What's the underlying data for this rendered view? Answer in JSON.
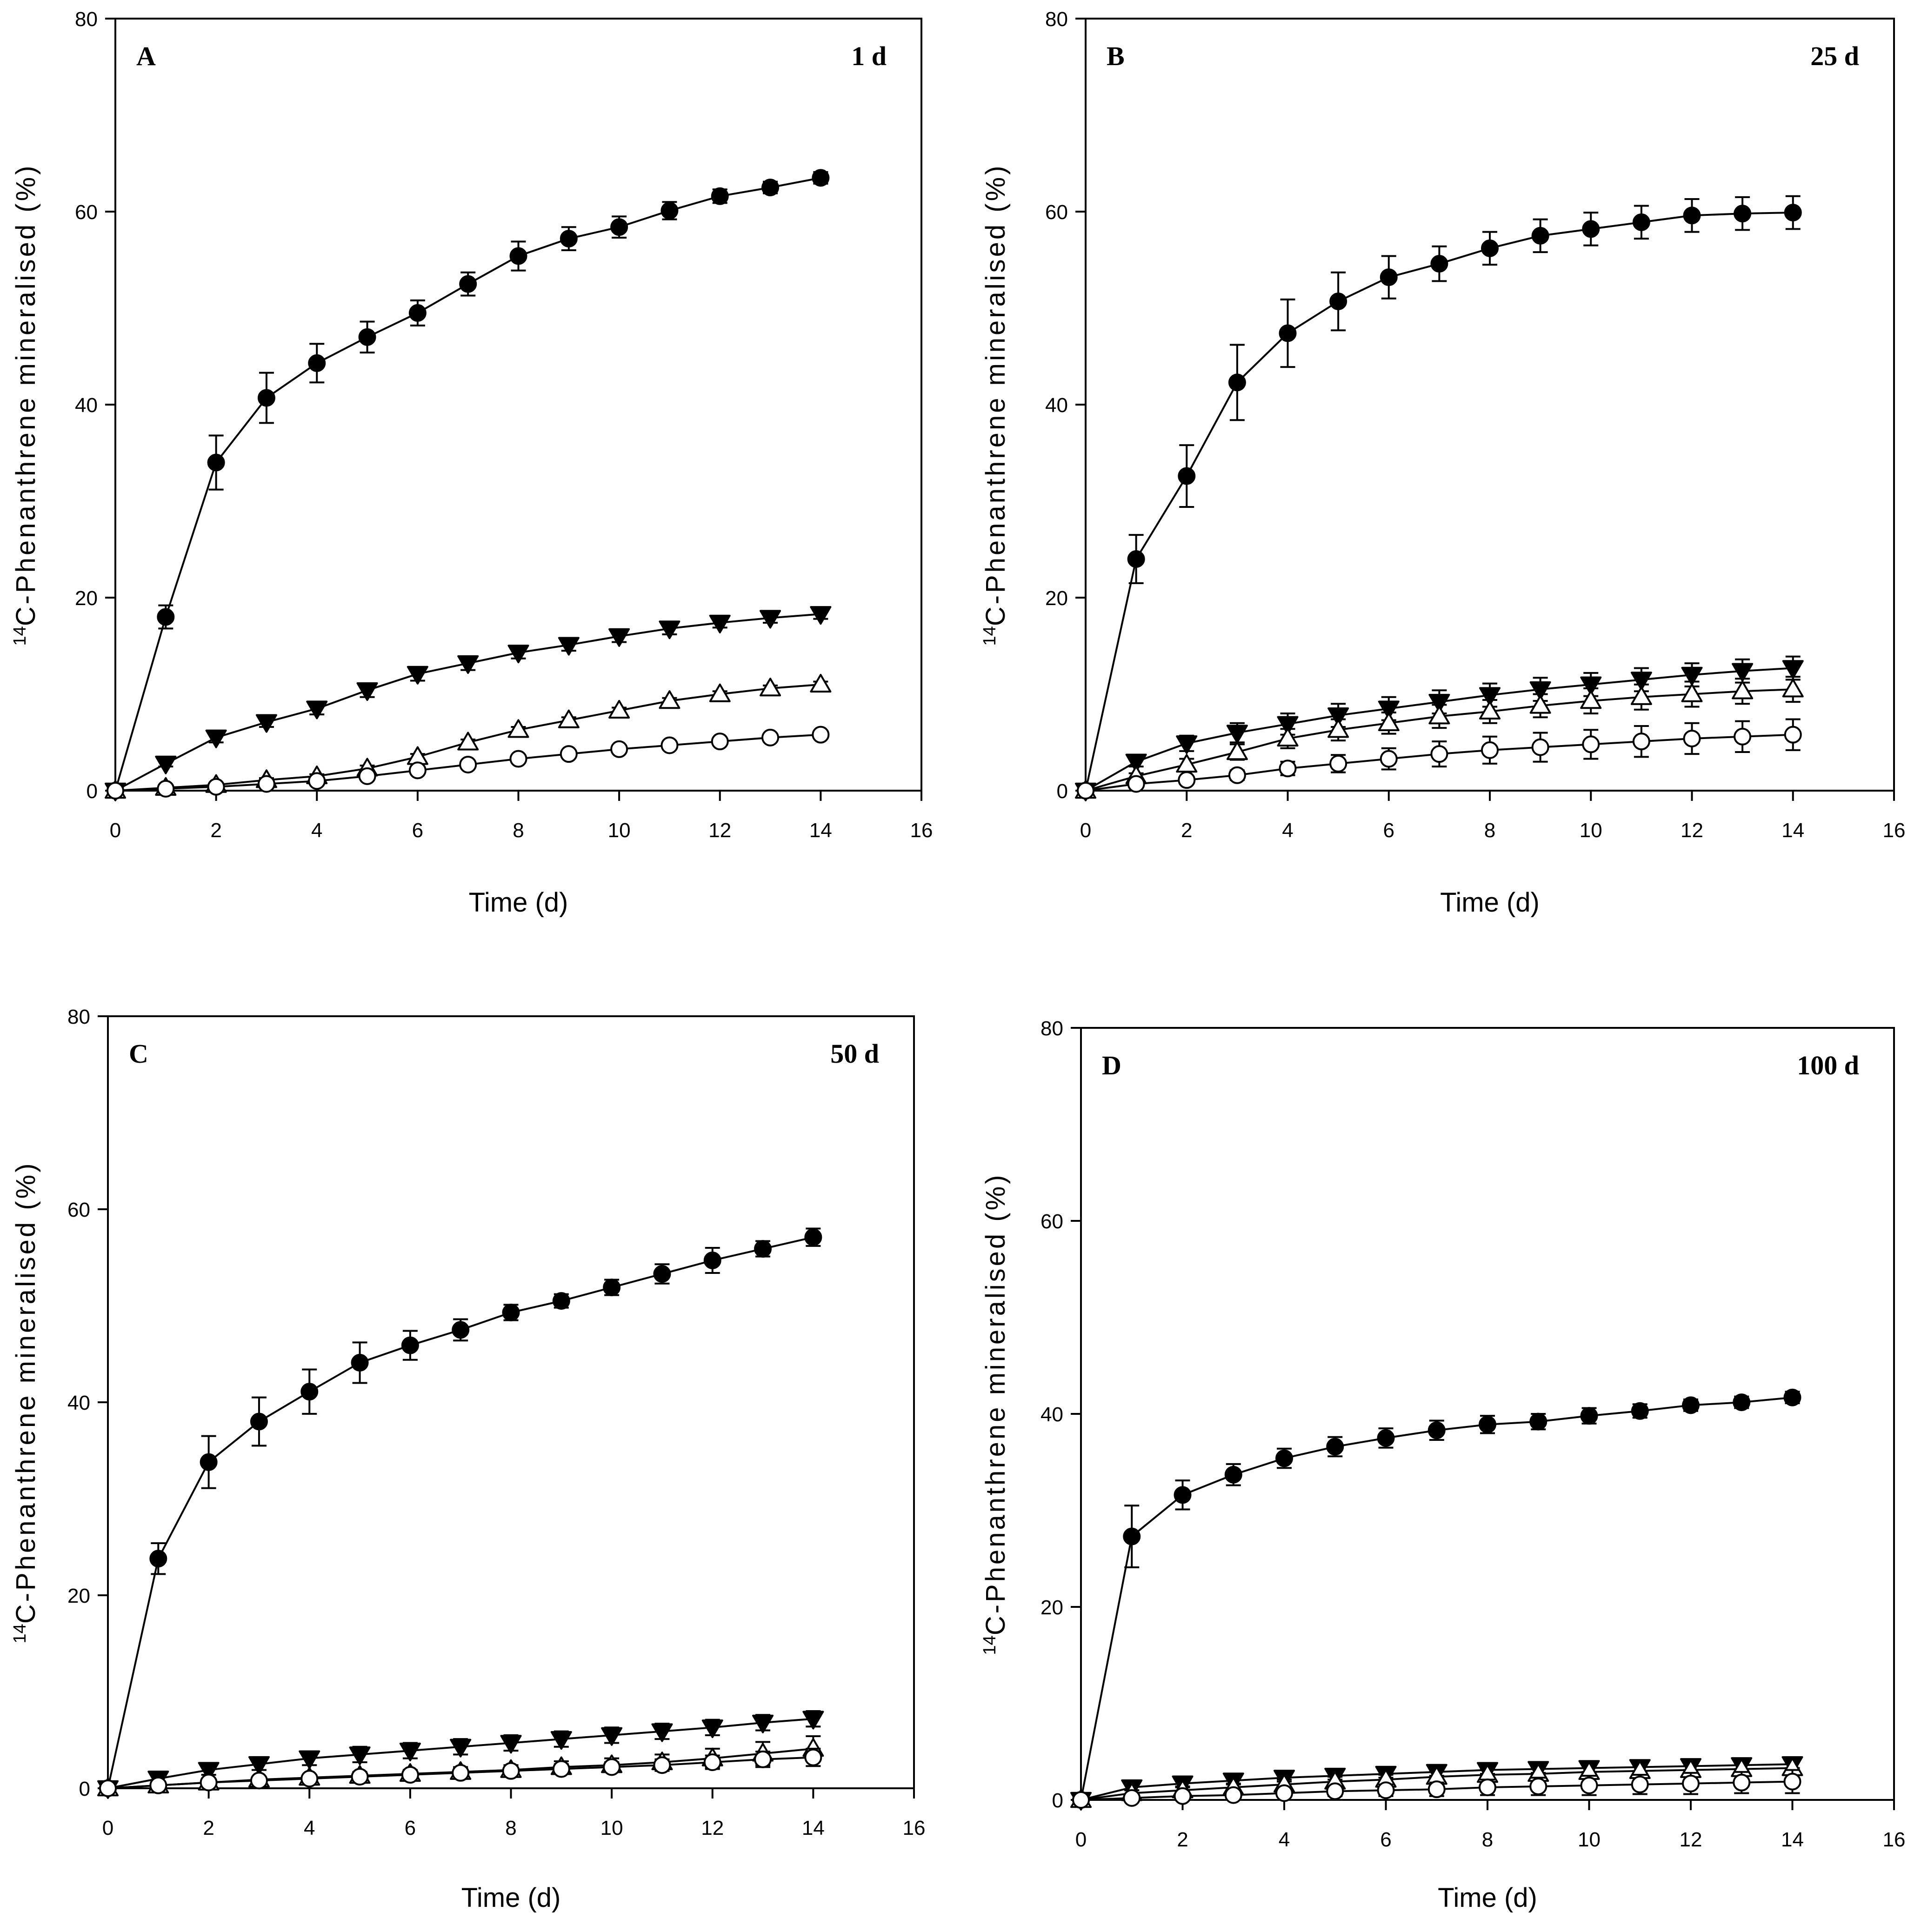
{
  "chart_data": [
    {
      "type": "line",
      "panel_label": "A",
      "title": "1 d",
      "xlabel": "Time (d)",
      "ylabel_sup": "14",
      "ylabel_main": "C-Phenanthrene mineralised (%)",
      "xlim": [
        0,
        16
      ],
      "ylim": [
        0,
        80
      ],
      "xticks": [
        0,
        2,
        4,
        6,
        8,
        10,
        12,
        14,
        16
      ],
      "yticks": [
        0,
        20,
        40,
        60,
        80
      ],
      "x": [
        0,
        1,
        2,
        3,
        4,
        5,
        6,
        7,
        8,
        9,
        10,
        11,
        12,
        13,
        14
      ],
      "series": [
        {
          "name": "filled-circle",
          "marker": "circle",
          "fill": "#000000",
          "values": [
            0,
            18,
            34,
            40.7,
            44.3,
            47,
            49.5,
            52.5,
            55.4,
            57.2,
            58.4,
            60.1,
            61.6,
            62.5,
            63.5
          ],
          "errors": [
            0,
            1.2,
            2.8,
            2.6,
            2,
            1.6,
            1.3,
            1.2,
            1.5,
            1.2,
            1.1,
            0.9,
            0.7,
            0.6,
            0.6
          ]
        },
        {
          "name": "filled-triangle-down",
          "marker": "triangle-down",
          "fill": "#000000",
          "values": [
            0,
            2.8,
            5.5,
            7.1,
            8.5,
            10.4,
            12.1,
            13.2,
            14.3,
            15.1,
            16,
            16.8,
            17.4,
            17.9,
            18.3
          ],
          "errors": [
            0,
            0.3,
            0.5,
            0.5,
            0.6,
            0.7,
            0.7,
            0.7,
            0.6,
            0.6,
            0.6,
            0.6,
            0.5,
            0.5,
            0.5
          ]
        },
        {
          "name": "open-triangle-up",
          "marker": "triangle-up",
          "fill": "#ffffff",
          "values": [
            0,
            0.3,
            0.6,
            1.1,
            1.5,
            2.3,
            3.5,
            5,
            6.3,
            7.3,
            8.3,
            9.3,
            10,
            10.6,
            11
          ],
          "errors": [
            0,
            0.1,
            0.1,
            0.2,
            0.2,
            0.3,
            0.3,
            0.3,
            0.3,
            0.3,
            0.3,
            0.3,
            0.3,
            0.3,
            0.3
          ]
        },
        {
          "name": "open-circle",
          "marker": "circle",
          "fill": "#ffffff",
          "values": [
            0,
            0.2,
            0.4,
            0.7,
            1,
            1.5,
            2.1,
            2.7,
            3.3,
            3.8,
            4.3,
            4.7,
            5.1,
            5.5,
            5.8
          ],
          "errors": [
            0,
            0.1,
            0.1,
            0.1,
            0.2,
            0.2,
            0.3,
            0.3,
            0.3,
            0.3,
            0.3,
            0.3,
            0.3,
            0.3,
            0.3
          ]
        }
      ]
    },
    {
      "type": "line",
      "panel_label": "B",
      "title": "25 d",
      "xlabel": "Time (d)",
      "ylabel_sup": "14",
      "ylabel_main": "C-Phenanthrene mineralised (%)",
      "xlim": [
        0,
        16
      ],
      "ylim": [
        0,
        80
      ],
      "xticks": [
        0,
        2,
        4,
        6,
        8,
        10,
        12,
        14,
        16
      ],
      "yticks": [
        0,
        20,
        40,
        60,
        80
      ],
      "x": [
        0,
        1,
        2,
        3,
        4,
        5,
        6,
        7,
        8,
        9,
        10,
        11,
        12,
        13,
        14
      ],
      "series": [
        {
          "name": "filled-circle",
          "marker": "circle",
          "fill": "#000000",
          "values": [
            0,
            24,
            32.6,
            42.3,
            47.4,
            50.7,
            53.2,
            54.6,
            56.2,
            57.5,
            58.2,
            58.9,
            59.6,
            59.8,
            59.9
          ],
          "errors": [
            0,
            2.5,
            3.2,
            3.9,
            3.5,
            3,
            2.2,
            1.8,
            1.7,
            1.7,
            1.7,
            1.7,
            1.7,
            1.7,
            1.7
          ]
        },
        {
          "name": "filled-triangle-down",
          "marker": "triangle-down",
          "fill": "#000000",
          "values": [
            0,
            3,
            4.9,
            6,
            6.9,
            7.8,
            8.5,
            9.2,
            9.9,
            10.5,
            11,
            11.5,
            12,
            12.4,
            12.7
          ],
          "errors": [
            0,
            0.5,
            0.8,
            1,
            1.1,
            1.2,
            1.2,
            1.2,
            1.2,
            1.2,
            1.2,
            1.2,
            1.2,
            1.2,
            1.2
          ]
        },
        {
          "name": "open-triangle-up",
          "marker": "triangle-up",
          "fill": "#ffffff",
          "values": [
            0,
            1.5,
            2.7,
            4,
            5.4,
            6.3,
            7,
            7.7,
            8.2,
            8.8,
            9.3,
            9.7,
            10,
            10.3,
            10.5
          ],
          "errors": [
            0,
            0.3,
            0.6,
            0.8,
            1,
            1.1,
            1.1,
            1.2,
            1.2,
            1.2,
            1.3,
            1.3,
            1.3,
            1.3,
            1.3
          ]
        },
        {
          "name": "open-circle",
          "marker": "circle",
          "fill": "#ffffff",
          "values": [
            0,
            0.7,
            1.1,
            1.6,
            2.3,
            2.8,
            3.3,
            3.8,
            4.2,
            4.5,
            4.8,
            5.1,
            5.4,
            5.6,
            5.8
          ],
          "errors": [
            0,
            0.3,
            0.4,
            0.5,
            0.7,
            0.9,
            1.1,
            1.3,
            1.4,
            1.5,
            1.5,
            1.6,
            1.6,
            1.6,
            1.6
          ]
        }
      ]
    },
    {
      "type": "line",
      "panel_label": "C",
      "title": "50 d",
      "xlabel": "Time  (d)",
      "ylabel_sup": "14",
      "ylabel_main": "C-Phenanthrene mineralised (%)",
      "xlim": [
        0,
        16
      ],
      "ylim": [
        0,
        80
      ],
      "xticks": [
        0,
        2,
        4,
        6,
        8,
        10,
        12,
        14,
        16
      ],
      "yticks": [
        0,
        20,
        40,
        60,
        80
      ],
      "x": [
        0,
        1,
        2,
        3,
        4,
        5,
        6,
        7,
        8,
        9,
        10,
        11,
        12,
        13,
        14
      ],
      "series": [
        {
          "name": "filled-circle",
          "marker": "circle",
          "fill": "#000000",
          "values": [
            0,
            23.8,
            33.8,
            38,
            41.1,
            44.1,
            45.9,
            47.5,
            49.3,
            50.5,
            51.9,
            53.3,
            54.7,
            55.9,
            57.1
          ],
          "errors": [
            0,
            1.6,
            2.7,
            2.5,
            2.3,
            2.1,
            1.5,
            1.1,
            0.8,
            0.7,
            0.8,
            1,
            1.3,
            0.8,
            0.9
          ]
        },
        {
          "name": "filled-triangle-down",
          "marker": "triangle-down",
          "fill": "#000000",
          "values": [
            0,
            1,
            1.9,
            2.5,
            3.1,
            3.5,
            3.9,
            4.3,
            4.7,
            5.1,
            5.5,
            5.9,
            6.3,
            6.8,
            7.2
          ],
          "errors": [
            0,
            0.3,
            0.5,
            0.6,
            0.7,
            0.8,
            0.8,
            0.8,
            0.8,
            0.8,
            0.8,
            0.8,
            0.8,
            0.8,
            0.8
          ]
        },
        {
          "name": "open-triangle-up",
          "marker": "triangle-up",
          "fill": "#ffffff",
          "values": [
            0,
            0.3,
            0.6,
            0.9,
            1.1,
            1.3,
            1.5,
            1.7,
            1.9,
            2.2,
            2.4,
            2.7,
            3.1,
            3.6,
            4.1
          ],
          "errors": [
            0,
            0.1,
            0.2,
            0.3,
            0.3,
            0.4,
            0.4,
            0.5,
            0.5,
            0.6,
            0.7,
            0.8,
            1,
            1.2,
            1.3
          ]
        },
        {
          "name": "open-circle",
          "marker": "circle",
          "fill": "#ffffff",
          "values": [
            0,
            0.3,
            0.6,
            0.8,
            1,
            1.2,
            1.4,
            1.6,
            1.8,
            2,
            2.2,
            2.4,
            2.7,
            3,
            3.2
          ],
          "errors": [
            0,
            0.1,
            0.2,
            0.2,
            0.3,
            0.3,
            0.3,
            0.4,
            0.4,
            0.5,
            0.5,
            0.6,
            0.7,
            0.8,
            0.9
          ]
        }
      ]
    },
    {
      "type": "line",
      "panel_label": "D",
      "title": "100 d",
      "xlabel": "Time (d)",
      "ylabel_sup": "14",
      "ylabel_main": "C-Phenanthrene mineralised (%)",
      "xlim": [
        0,
        16
      ],
      "ylim": [
        0,
        80
      ],
      "xticks": [
        0,
        2,
        4,
        6,
        8,
        10,
        12,
        14,
        16
      ],
      "yticks": [
        0,
        20,
        40,
        60,
        80
      ],
      "x": [
        0,
        1,
        2,
        3,
        4,
        5,
        6,
        7,
        8,
        9,
        10,
        11,
        12,
        13,
        14
      ],
      "series": [
        {
          "name": "filled-circle",
          "marker": "circle",
          "fill": "#000000",
          "values": [
            0,
            27.3,
            31.6,
            33.7,
            35.4,
            36.6,
            37.5,
            38.3,
            38.9,
            39.2,
            39.8,
            40.3,
            40.9,
            41.2,
            41.7
          ],
          "errors": [
            0,
            3.2,
            1.5,
            1.1,
            1,
            1,
            1,
            1,
            0.9,
            0.8,
            0.8,
            0.7,
            0.6,
            0.6,
            0.6
          ]
        },
        {
          "name": "filled-triangle-down",
          "marker": "triangle-down",
          "fill": "#000000",
          "values": [
            0,
            1.3,
            1.7,
            2,
            2.3,
            2.5,
            2.7,
            2.9,
            3.1,
            3.2,
            3.3,
            3.4,
            3.5,
            3.6,
            3.7
          ],
          "errors": [
            0,
            0.3,
            0.4,
            0.4,
            0.4,
            0.4,
            0.4,
            0.4,
            0.4,
            0.4,
            0.4,
            0.4,
            0.4,
            0.4,
            0.4
          ]
        },
        {
          "name": "open-triangle-up",
          "marker": "triangle-up",
          "fill": "#ffffff",
          "values": [
            0,
            0.7,
            1,
            1.3,
            1.6,
            1.9,
            2.1,
            2.4,
            2.6,
            2.7,
            2.9,
            3,
            3.1,
            3.2,
            3.3
          ],
          "errors": [
            0,
            0.3,
            0.4,
            0.4,
            0.5,
            0.5,
            0.5,
            0.6,
            0.6,
            0.6,
            0.6,
            0.6,
            0.6,
            0.6,
            0.6
          ]
        },
        {
          "name": "open-circle",
          "marker": "circle",
          "fill": "#ffffff",
          "values": [
            0,
            0.2,
            0.4,
            0.5,
            0.7,
            0.9,
            1,
            1.1,
            1.3,
            1.4,
            1.5,
            1.6,
            1.7,
            1.8,
            1.9
          ],
          "errors": [
            0,
            0.1,
            0.2,
            0.3,
            0.4,
            0.5,
            0.6,
            0.7,
            0.8,
            0.9,
            1,
            1,
            1.1,
            1.1,
            1.2
          ]
        }
      ]
    }
  ]
}
